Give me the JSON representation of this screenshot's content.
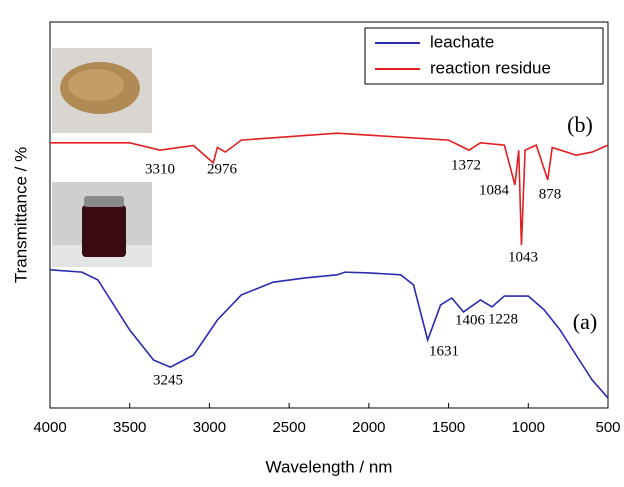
{
  "chart_data": {
    "type": "line",
    "xlabel": "Wavelength / nm",
    "ylabel": "Transmittance / %",
    "xlim": [
      4000,
      500
    ],
    "ylim": [
      0,
      100
    ],
    "xticks": [
      4000,
      3500,
      3000,
      2500,
      2000,
      1500,
      1000,
      500
    ],
    "series": [
      {
        "name": "leachate",
        "color": "#2b2bb0",
        "x": [
          4000,
          3800,
          3700,
          3500,
          3350,
          3245,
          3100,
          2950,
          2800,
          2600,
          2400,
          2200,
          2150,
          2000,
          1800,
          1720,
          1631,
          1550,
          1480,
          1406,
          1300,
          1228,
          1150,
          1000,
          900,
          800,
          700,
          600,
          500
        ],
        "values": [
          35.8,
          35.2,
          33.2,
          20.2,
          12.4,
          10.6,
          13.7,
          22.8,
          29.3,
          32.6,
          33.7,
          34.5,
          35.2,
          35.0,
          34.5,
          31.9,
          17.6,
          26.7,
          28.5,
          24.9,
          28.0,
          26.2,
          29.0,
          29.0,
          25.4,
          20.2,
          13.7,
          7.3,
          2.6
        ]
      },
      {
        "name": "reaction residue",
        "color": "#e02020",
        "x": [
          4000,
          3500,
          3310,
          3100,
          2976,
          2950,
          2900,
          2800,
          2200,
          1500,
          1372,
          1300,
          1150,
          1084,
          1060,
          1043,
          1020,
          950,
          878,
          850,
          700,
          600,
          500
        ],
        "values": [
          68.7,
          68.7,
          66.8,
          68.0,
          63.5,
          67.5,
          66.3,
          69.4,
          71.2,
          69.4,
          66.8,
          68.7,
          68.1,
          57.8,
          66.8,
          42.2,
          66.8,
          68.1,
          59.1,
          67.5,
          65.5,
          66.3,
          68.1
        ]
      }
    ],
    "annotations": [
      "3310",
      "2976",
      "1372",
      "1084",
      "1043",
      "878",
      "3245",
      "1631",
      "1406",
      "1228",
      "(a)",
      "(b)"
    ]
  }
}
